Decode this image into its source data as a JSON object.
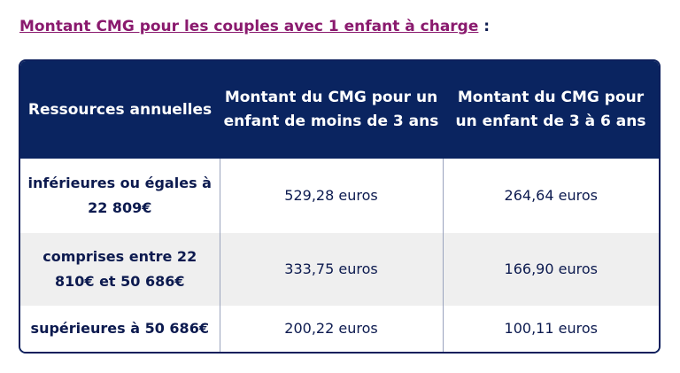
{
  "heading": {
    "link_text": "Montant CMG pour les couples avec 1 enfant à charge",
    "suffix": " :"
  },
  "table": {
    "headers": [
      "Ressources annuelles",
      "Montant du CMG pour un enfant de moins de 3 ans",
      "Montant du CMG pour un enfant de 3 à 6 ans"
    ],
    "rows": [
      [
        "inférieures ou égales à 22 809€",
        "529,28 euros",
        "264,64 euros"
      ],
      [
        "comprises entre 22 810€ et 50 686€",
        "333,75 euros",
        "166,90 euros"
      ],
      [
        "supérieures à 50 686€",
        "200,22 euros",
        "100,11 euros"
      ]
    ]
  },
  "colors": {
    "header_bg": "#0a2460",
    "link": "#8a1a6e",
    "text": "#0c1a4f",
    "stripe": "#efefef"
  }
}
